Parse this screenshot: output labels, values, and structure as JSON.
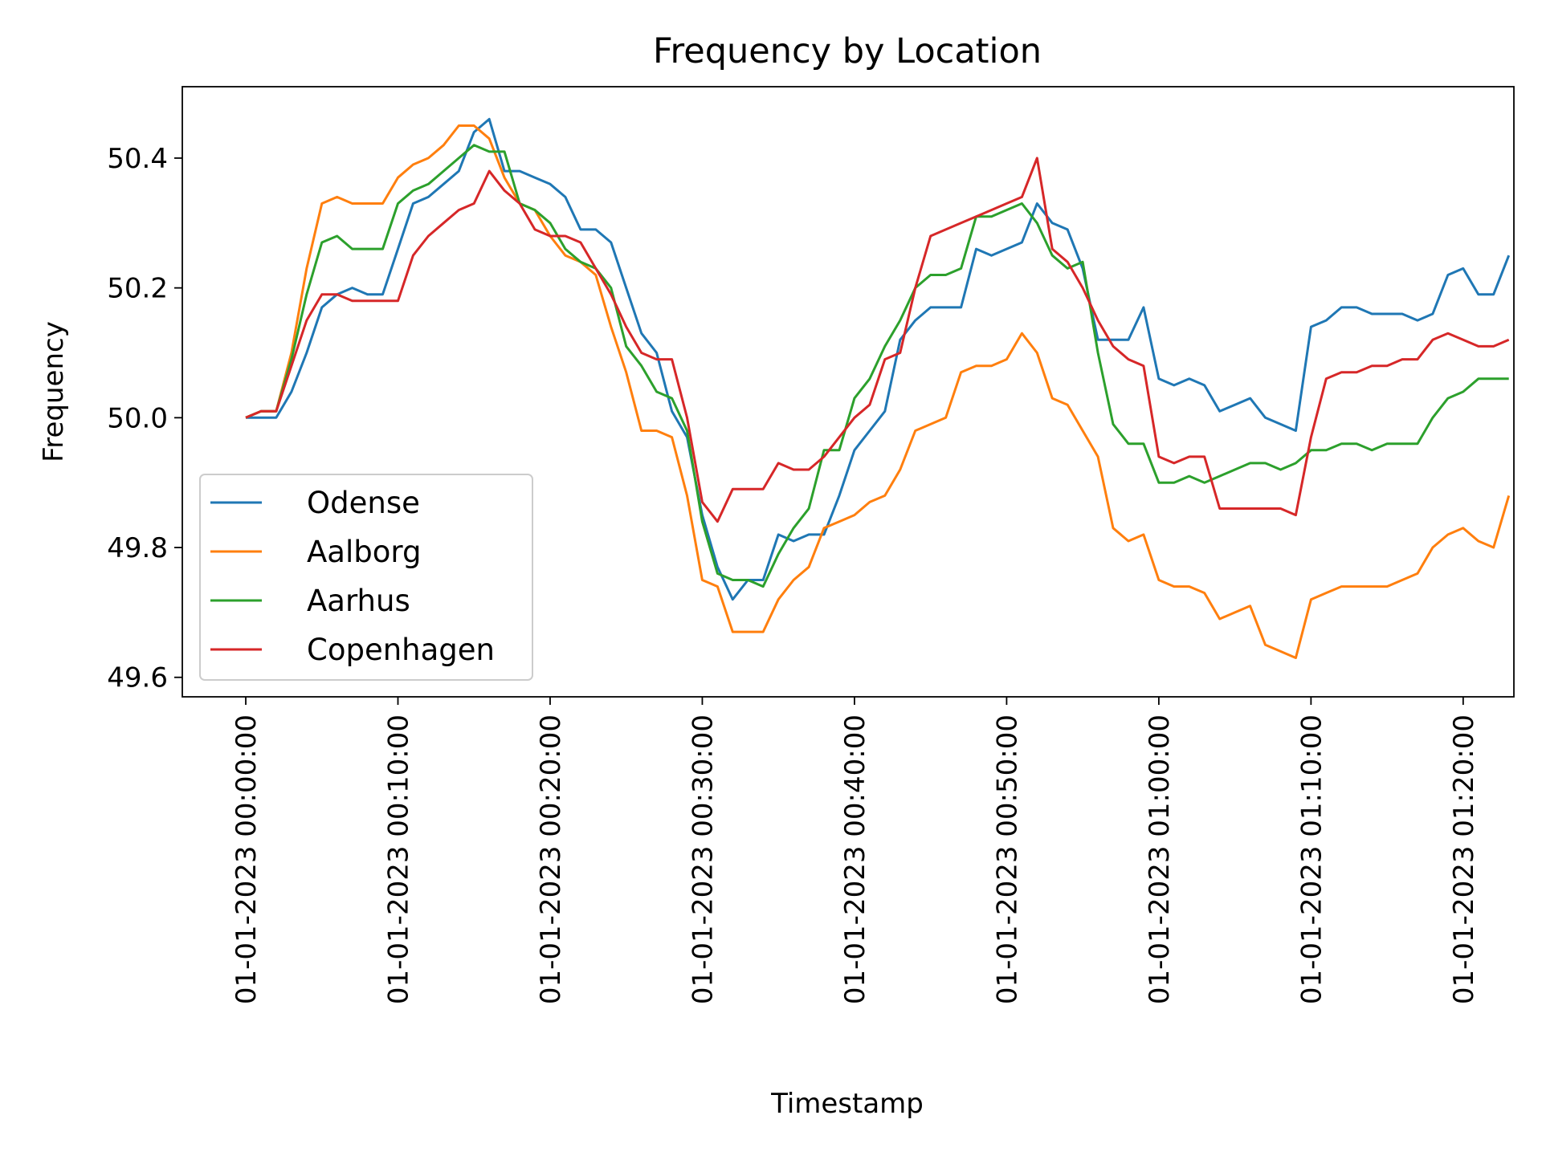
{
  "chart_data": {
    "type": "line",
    "title": "Frequency by Location",
    "xlabel": "Timestamp",
    "ylabel": "Frequency",
    "xlim": [
      "01-01-2023 00:00:00",
      "01-01-2023 01:23:20"
    ],
    "ylim": [
      49.57,
      50.51
    ],
    "x_ticks": [
      "01-01-2023 00:00:00",
      "01-01-2023 00:10:00",
      "01-01-2023 00:20:00",
      "01-01-2023 00:30:00",
      "01-01-2023 00:40:00",
      "01-01-2023 00:50:00",
      "01-01-2023 01:00:00",
      "01-01-2023 01:10:00",
      "01-01-2023 01:20:00"
    ],
    "y_ticks": [
      "49.6",
      "49.8",
      "50.0",
      "50.2",
      "50.4"
    ],
    "grid": false,
    "legend_position": "lower-left",
    "x": [
      "01-01-2023 00:00:00",
      "01-01-2023 00:01:00",
      "01-01-2023 00:02:00",
      "01-01-2023 00:03:00",
      "01-01-2023 00:04:00",
      "01-01-2023 00:05:00",
      "01-01-2023 00:06:00",
      "01-01-2023 00:07:00",
      "01-01-2023 00:08:00",
      "01-01-2023 00:09:00",
      "01-01-2023 00:10:00",
      "01-01-2023 00:11:00",
      "01-01-2023 00:12:00",
      "01-01-2023 00:13:00",
      "01-01-2023 00:14:00",
      "01-01-2023 00:15:00",
      "01-01-2023 00:16:00",
      "01-01-2023 00:17:00",
      "01-01-2023 00:18:00",
      "01-01-2023 00:19:00",
      "01-01-2023 00:20:00",
      "01-01-2023 00:21:00",
      "01-01-2023 00:22:00",
      "01-01-2023 00:23:00",
      "01-01-2023 00:24:00",
      "01-01-2023 00:25:00",
      "01-01-2023 00:26:00",
      "01-01-2023 00:27:00",
      "01-01-2023 00:28:00",
      "01-01-2023 00:29:00",
      "01-01-2023 00:30:00",
      "01-01-2023 00:31:00",
      "01-01-2023 00:32:00",
      "01-01-2023 00:33:00",
      "01-01-2023 00:34:00",
      "01-01-2023 00:35:00",
      "01-01-2023 00:36:00",
      "01-01-2023 00:37:00",
      "01-01-2023 00:38:00",
      "01-01-2023 00:39:00",
      "01-01-2023 00:40:00",
      "01-01-2023 00:41:00",
      "01-01-2023 00:42:00",
      "01-01-2023 00:43:00",
      "01-01-2023 00:44:00",
      "01-01-2023 00:45:00",
      "01-01-2023 00:46:00",
      "01-01-2023 00:47:00",
      "01-01-2023 00:48:00",
      "01-01-2023 00:49:00",
      "01-01-2023 00:50:00",
      "01-01-2023 00:51:00",
      "01-01-2023 00:52:00",
      "01-01-2023 00:53:00",
      "01-01-2023 00:54:00",
      "01-01-2023 00:55:00",
      "01-01-2023 00:56:00",
      "01-01-2023 00:57:00",
      "01-01-2023 00:58:00",
      "01-01-2023 00:59:00",
      "01-01-2023 01:00:00",
      "01-01-2023 01:01:00",
      "01-01-2023 01:02:00",
      "01-01-2023 01:03:00",
      "01-01-2023 01:04:00",
      "01-01-2023 01:05:00",
      "01-01-2023 01:06:00",
      "01-01-2023 01:07:00",
      "01-01-2023 01:08:00",
      "01-01-2023 01:09:00",
      "01-01-2023 01:10:00",
      "01-01-2023 01:11:00",
      "01-01-2023 01:12:00",
      "01-01-2023 01:13:00",
      "01-01-2023 01:14:00",
      "01-01-2023 01:15:00",
      "01-01-2023 01:16:00",
      "01-01-2023 01:17:00",
      "01-01-2023 01:18:00",
      "01-01-2023 01:19:00",
      "01-01-2023 01:20:00",
      "01-01-2023 01:21:00",
      "01-01-2023 01:22:00",
      "01-01-2023 01:23:00"
    ],
    "series": [
      {
        "name": "Odense",
        "color": "#1f77b4",
        "values": [
          50.0,
          50.0,
          50.0,
          50.04,
          50.1,
          50.17,
          50.19,
          50.2,
          50.19,
          50.19,
          50.26,
          50.33,
          50.34,
          50.36,
          50.38,
          50.44,
          50.46,
          50.38,
          50.38,
          50.37,
          50.36,
          50.34,
          50.29,
          50.29,
          50.27,
          50.2,
          50.13,
          50.1,
          50.01,
          49.97,
          49.85,
          49.77,
          49.72,
          49.75,
          49.75,
          49.82,
          49.81,
          49.82,
          49.82,
          49.88,
          49.95,
          49.98,
          50.01,
          50.12,
          50.15,
          50.17,
          50.17,
          50.17,
          50.26,
          50.25,
          50.26,
          50.27,
          50.33,
          50.3,
          50.29,
          50.23,
          50.12,
          50.12,
          50.12,
          50.17,
          50.06,
          50.05,
          50.06,
          50.05,
          50.01,
          50.02,
          50.03,
          50.0,
          49.99,
          49.98,
          50.14,
          50.15,
          50.17,
          50.17,
          50.16,
          50.16,
          50.16,
          50.15,
          50.16,
          50.22,
          50.23,
          50.19,
          50.19,
          50.25
        ]
      },
      {
        "name": "Aalborg",
        "color": "#ff7f0e",
        "values": [
          50.0,
          50.01,
          50.01,
          50.1,
          50.23,
          50.33,
          50.34,
          50.33,
          50.33,
          50.33,
          50.37,
          50.39,
          50.4,
          50.42,
          50.45,
          50.45,
          50.43,
          50.37,
          50.33,
          50.32,
          50.28,
          50.25,
          50.24,
          50.22,
          50.14,
          50.07,
          49.98,
          49.98,
          49.97,
          49.88,
          49.75,
          49.74,
          49.67,
          49.67,
          49.67,
          49.72,
          49.75,
          49.77,
          49.83,
          49.84,
          49.85,
          49.87,
          49.88,
          49.92,
          49.98,
          49.99,
          50.0,
          50.07,
          50.08,
          50.08,
          50.09,
          50.13,
          50.1,
          50.03,
          50.02,
          49.98,
          49.94,
          49.83,
          49.81,
          49.82,
          49.75,
          49.74,
          49.74,
          49.73,
          49.69,
          49.7,
          49.71,
          49.65,
          49.64,
          49.63,
          49.72,
          49.73,
          49.74,
          49.74,
          49.74,
          49.74,
          49.75,
          49.76,
          49.8,
          49.82,
          49.83,
          49.81,
          49.8,
          49.88
        ]
      },
      {
        "name": "Aarhus",
        "color": "#2ca02c",
        "values": [
          50.0,
          50.01,
          50.01,
          50.09,
          50.19,
          50.27,
          50.28,
          50.26,
          50.26,
          50.26,
          50.33,
          50.35,
          50.36,
          50.38,
          50.4,
          50.42,
          50.41,
          50.41,
          50.33,
          50.32,
          50.3,
          50.26,
          50.24,
          50.23,
          50.2,
          50.11,
          50.08,
          50.04,
          50.03,
          49.98,
          49.84,
          49.76,
          49.75,
          49.75,
          49.74,
          49.79,
          49.83,
          49.86,
          49.95,
          49.95,
          50.03,
          50.06,
          50.11,
          50.15,
          50.2,
          50.22,
          50.22,
          50.23,
          50.31,
          50.31,
          50.32,
          50.33,
          50.3,
          50.25,
          50.23,
          50.24,
          50.1,
          49.99,
          49.96,
          49.96,
          49.9,
          49.9,
          49.91,
          49.9,
          49.91,
          49.92,
          49.93,
          49.93,
          49.92,
          49.93,
          49.95,
          49.95,
          49.96,
          49.96,
          49.95,
          49.96,
          49.96,
          49.96,
          50.0,
          50.03,
          50.04,
          50.06,
          50.06,
          50.06
        ]
      },
      {
        "name": "Copenhagen",
        "color": "#d62728",
        "values": [
          50.0,
          50.01,
          50.01,
          50.08,
          50.15,
          50.19,
          50.19,
          50.18,
          50.18,
          50.18,
          50.18,
          50.25,
          50.28,
          50.3,
          50.32,
          50.33,
          50.38,
          50.35,
          50.33,
          50.29,
          50.28,
          50.28,
          50.27,
          50.23,
          50.19,
          50.14,
          50.1,
          50.09,
          50.09,
          50.0,
          49.87,
          49.84,
          49.89,
          49.89,
          49.89,
          49.93,
          49.92,
          49.92,
          49.94,
          49.97,
          50.0,
          50.02,
          50.09,
          50.1,
          50.2,
          50.28,
          50.29,
          50.3,
          50.31,
          50.32,
          50.33,
          50.34,
          50.4,
          50.26,
          50.24,
          50.2,
          50.15,
          50.11,
          50.09,
          50.08,
          49.94,
          49.93,
          49.94,
          49.94,
          49.86,
          49.86,
          49.86,
          49.86,
          49.86,
          49.85,
          49.97,
          50.06,
          50.07,
          50.07,
          50.08,
          50.08,
          50.09,
          50.09,
          50.12,
          50.13,
          50.12,
          50.11,
          50.11,
          50.12
        ]
      }
    ]
  }
}
